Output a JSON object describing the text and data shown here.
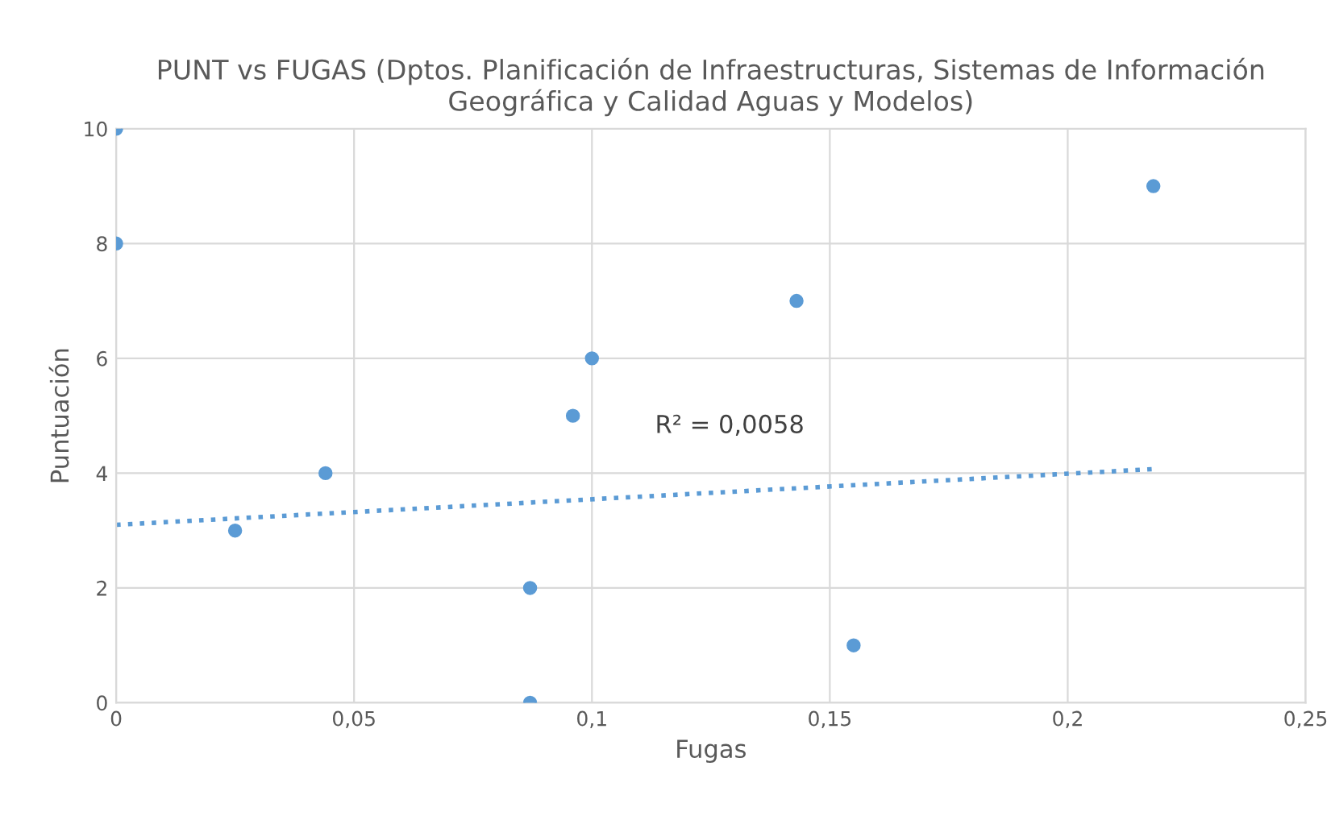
{
  "chart_data": {
    "type": "scatter",
    "title": "PUNT vs FUGAS (Dptos. Planificación de Infraestructuras, Sistemas de Información Geográfica y Calidad Aguas y Modelos)",
    "xlabel": "Fugas",
    "ylabel": "Puntuación",
    "series": [
      {
        "color": "#5b9bd5",
        "marker": "circle",
        "x": [
          0,
          0,
          0.025,
          0.044,
          0.087,
          0.087,
          0.096,
          0.1,
          0.143,
          0.155,
          0.218
        ],
        "values": [
          10,
          8,
          3,
          4,
          2,
          0,
          5,
          6,
          7,
          1,
          9
        ]
      },
      {
        "type": "line",
        "color": "#5b9bd5",
        "line_style": "dotted",
        "marker": "none",
        "x": [
          0,
          0.218
        ],
        "values": [
          3.1,
          4.07
        ]
      }
    ],
    "annotations": [
      "R² = 0,0058"
    ],
    "xlim": [
      0,
      0.25
    ],
    "xticks": [
      0,
      {
        "value": 0.05,
        "label": "0,05"
      },
      {
        "value": 0.1,
        "label": "0,1"
      },
      {
        "value": 0.15,
        "label": "0,15"
      },
      {
        "value": 0.2,
        "label": "0,2"
      },
      {
        "value": 0.25,
        "label": "0,25"
      }
    ],
    "ylim": [
      0,
      10
    ],
    "yticks": [
      0,
      2,
      4,
      6,
      8,
      10
    ],
    "grid": true,
    "legend": false
  }
}
